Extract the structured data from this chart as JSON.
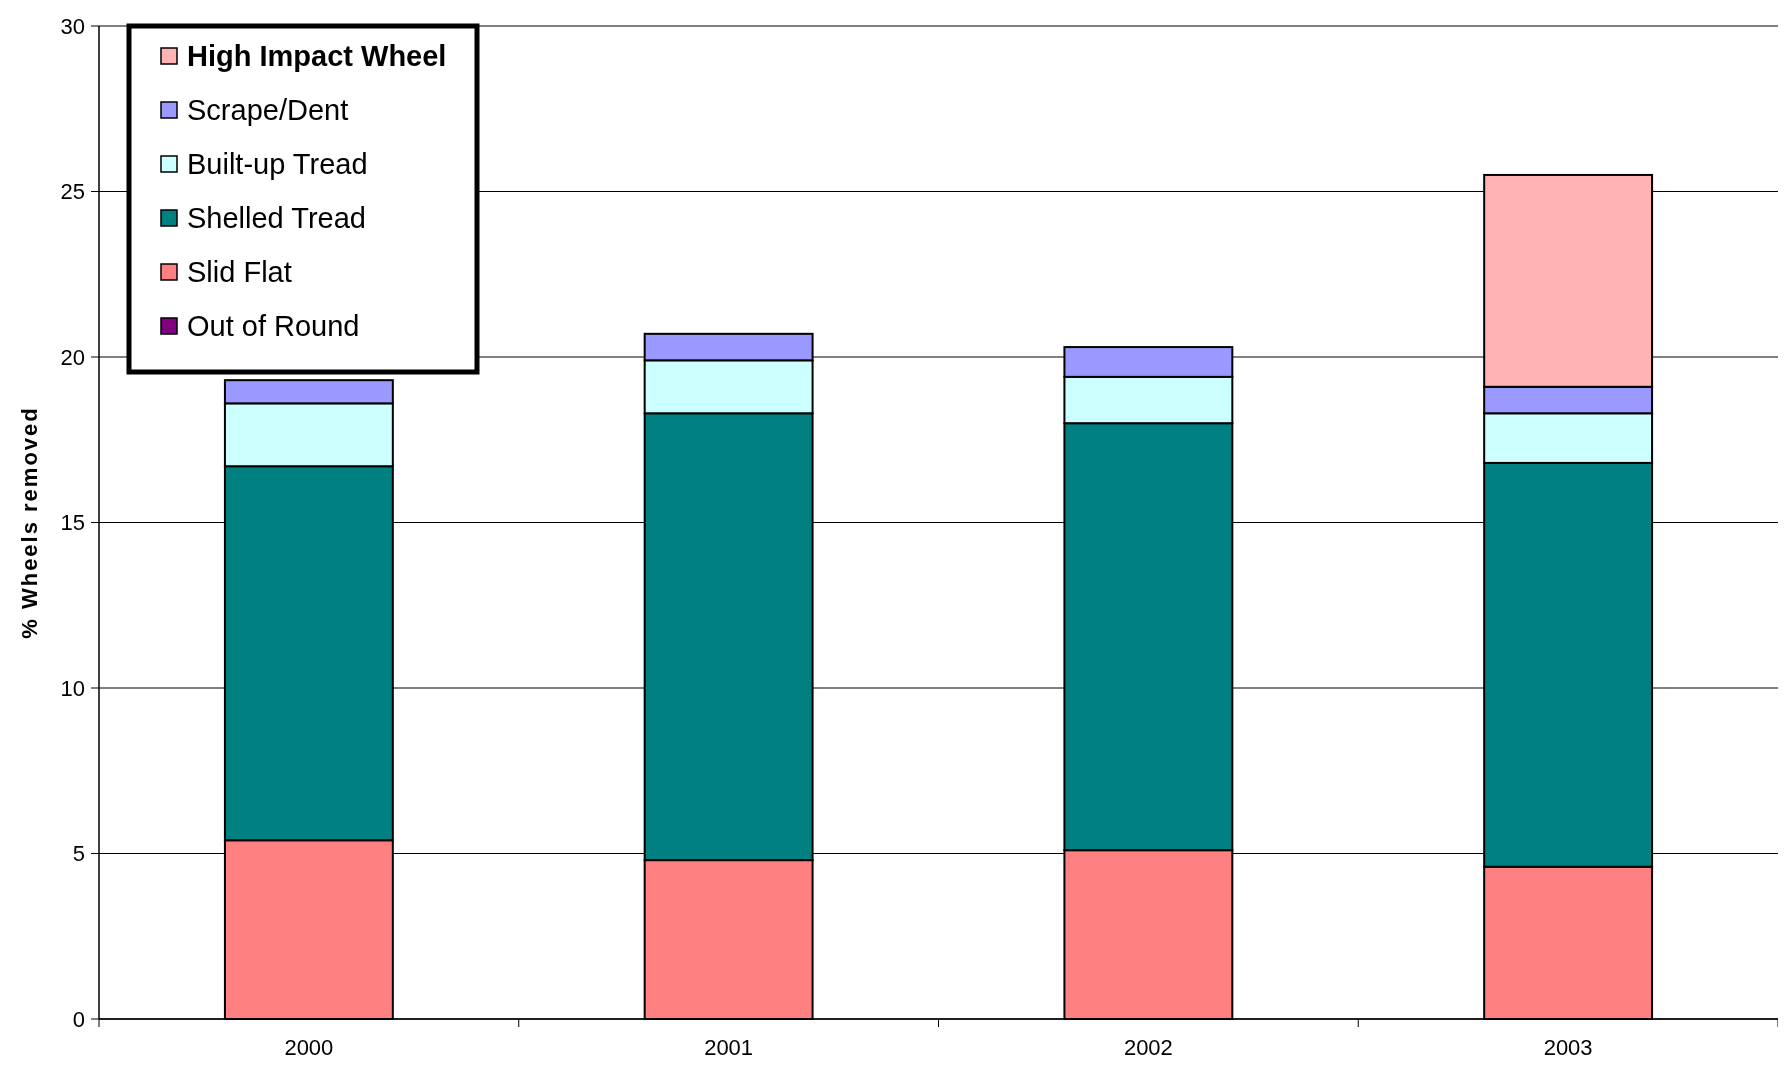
{
  "chart_data": {
    "type": "bar",
    "stacked": true,
    "ylabel": "% Wheels removed",
    "categories": [
      "2000",
      "2001",
      "2002",
      "2003"
    ],
    "series": [
      {
        "name": "Out of Round",
        "color": "#800080",
        "values": [
          0,
          0,
          0,
          0
        ]
      },
      {
        "name": "Slid Flat",
        "color": "#ff8080",
        "values": [
          5.4,
          4.8,
          5.1,
          4.6
        ]
      },
      {
        "name": "Shelled Tread",
        "color": "#008080",
        "values": [
          11.3,
          13.5,
          12.9,
          12.2
        ]
      },
      {
        "name": "Built-up Tread",
        "color": "#ccffff",
        "values": [
          1.9,
          1.6,
          1.4,
          1.5
        ]
      },
      {
        "name": "Scrape/Dent",
        "color": "#9999ff",
        "values": [
          0.7,
          0.8,
          0.9,
          0.8
        ]
      },
      {
        "name": "High Impact Wheel",
        "color": "#ffb3b3",
        "values": [
          0,
          0,
          0,
          6.4
        ]
      }
    ],
    "ylim": [
      0,
      30
    ],
    "yticks": [
      0,
      5,
      10,
      15,
      20,
      25,
      30
    ],
    "grid": "y",
    "legend": "top left"
  }
}
